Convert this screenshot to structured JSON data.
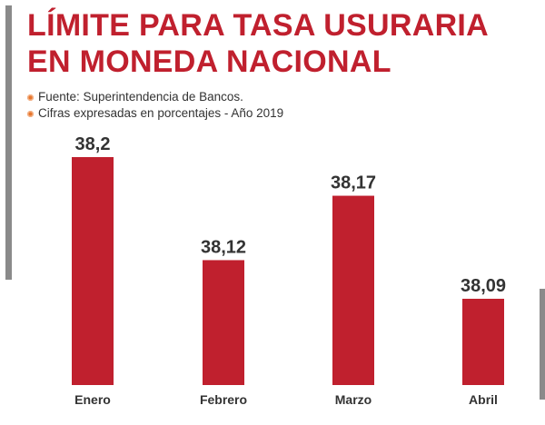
{
  "title_line1": "LÍMITE PARA TASA USURARIA",
  "title_line2": "EN MONEDA NACIONAL",
  "notes": [
    "Fuente: Superintendencia de Bancos.",
    "Cifras expresadas en porcentajes - Año 2019"
  ],
  "colors": {
    "bar": "#c0202e",
    "accent": "#e8762d",
    "text": "#333333"
  },
  "chart_data": {
    "type": "bar",
    "categories": [
      "Enero",
      "Febrero",
      "Marzo",
      "Abril"
    ],
    "values": [
      38.2,
      38.12,
      38.17,
      38.09
    ],
    "value_labels": [
      "38,2",
      "38,12",
      "38,17",
      "38,09"
    ],
    "title": "LÍMITE PARA TASA USURARIA EN MONEDA NACIONAL",
    "xlabel": "",
    "ylabel": "",
    "grid": false,
    "legend": "none"
  }
}
